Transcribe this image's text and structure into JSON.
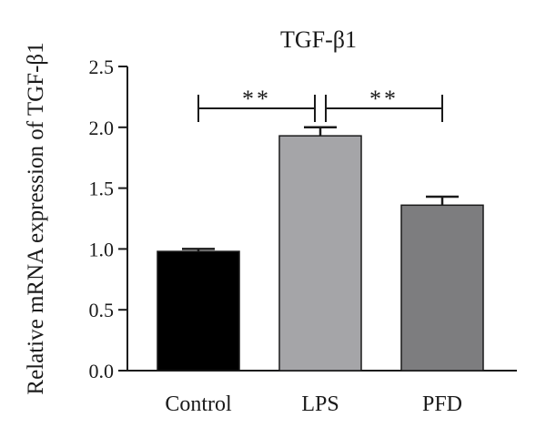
{
  "chart_data": {
    "type": "bar",
    "title": "TGF-β1",
    "xlabel": "",
    "ylabel": "Relative mRNA expression of TGF-β1",
    "ylim": [
      0,
      2.5
    ],
    "yticks": [
      "0.0",
      "0.5",
      "1.0",
      "1.5",
      "2.0",
      "2.5"
    ],
    "categories": [
      "Control",
      "LPS",
      "PFD"
    ],
    "values": [
      0.98,
      1.93,
      1.36
    ],
    "error": [
      0.02,
      0.07,
      0.07
    ],
    "colors": [
      "#000000",
      "#a5a5a8",
      "#7d7d7f"
    ],
    "grid": false,
    "significance": [
      {
        "from": 0,
        "to": 1,
        "label": "**"
      },
      {
        "from": 1,
        "to": 2,
        "label": "**"
      }
    ]
  }
}
